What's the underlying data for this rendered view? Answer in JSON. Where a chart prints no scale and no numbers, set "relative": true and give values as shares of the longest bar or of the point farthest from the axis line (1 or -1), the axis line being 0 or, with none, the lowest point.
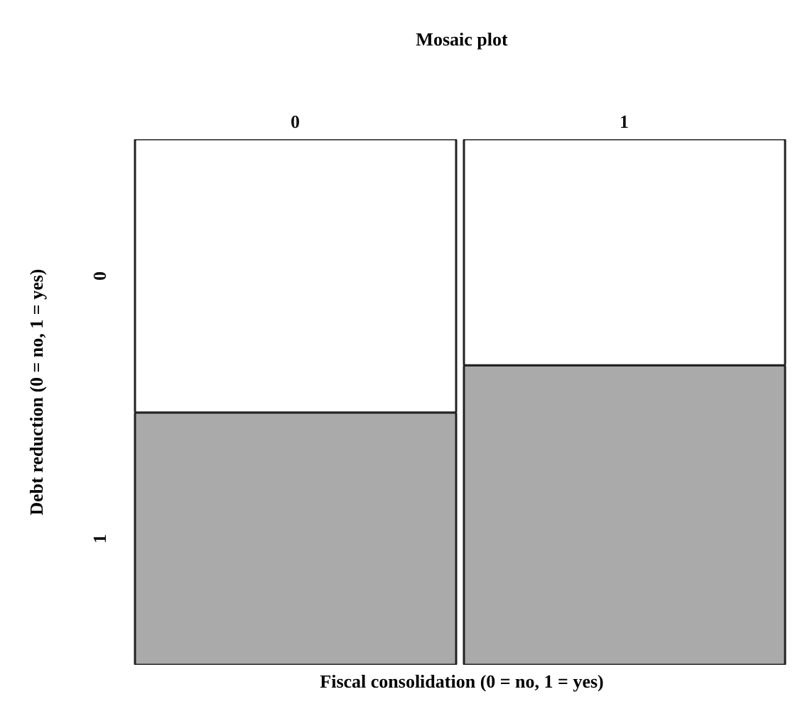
{
  "chart_data": {
    "type": "bar",
    "title": "Mosaic plot",
    "xlabel": "Fiscal consolidation (0 = no, 1 = yes)",
    "ylabel": "Debt reduction (0 = no, 1 = yes)",
    "categories": [
      "0",
      "1"
    ],
    "stacked": true,
    "relative": true,
    "legend": false,
    "series": [
      {
        "name": "1",
        "color": "#aaaaaa",
        "values": [
          0.48,
          0.57
        ]
      },
      {
        "name": "0",
        "color": "#ffffff",
        "values": [
          0.52,
          0.43
        ]
      }
    ]
  }
}
